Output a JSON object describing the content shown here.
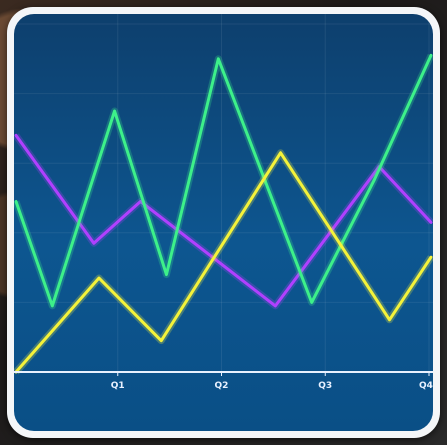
{
  "chart_data": {
    "type": "line",
    "categories": [
      "",
      "Q1",
      "",
      "Q2",
      "",
      "",
      "Q3",
      "",
      "Q4"
    ],
    "x_ticks": [
      "Q1",
      "Q2",
      "Q3",
      "Q4"
    ],
    "ylim": [
      0,
      100
    ],
    "grid": true,
    "title": "",
    "xlabel": "",
    "ylabel": "",
    "series": [
      {
        "color": "#b040ff",
        "x": [
          0,
          0.75,
          1.2,
          2.5,
          3.5,
          4.0
        ],
        "y": [
          68,
          37,
          49,
          19,
          59,
          43
        ]
      },
      {
        "color": "#3df08a",
        "x": [
          0,
          0.35,
          0.95,
          1.45,
          1.95,
          2.85,
          3.45,
          4.0
        ],
        "y": [
          49,
          19,
          75,
          28,
          90,
          20,
          55,
          91
        ]
      },
      {
        "color": "#f4f23a",
        "x": [
          0,
          0.8,
          1.4,
          2.55,
          3.6,
          4.0
        ],
        "y": [
          0,
          27,
          9,
          63,
          15,
          33
        ]
      }
    ]
  }
}
